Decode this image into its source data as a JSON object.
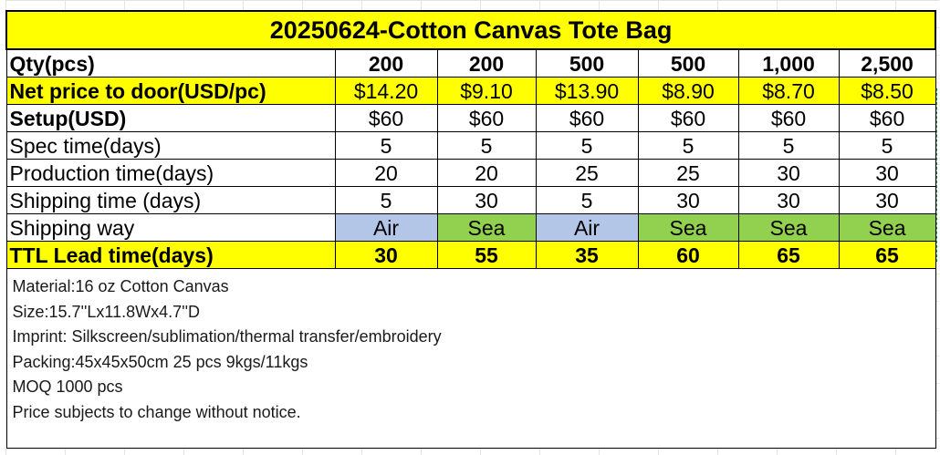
{
  "title": "20250624-Cotton Canvas Tote Bag",
  "header": {
    "label": "Qty(pcs)",
    "quantities": [
      "200",
      "200",
      "500",
      "500",
      "1,000",
      "2,500"
    ]
  },
  "rows": [
    {
      "label": "Net price to door(USD/pc)",
      "values": [
        "$14.20",
        "$9.10",
        "$13.90",
        "$8.90",
        "$8.70",
        "$8.50"
      ]
    },
    {
      "label": "Setup(USD)",
      "values": [
        "$60",
        "$60",
        "$60",
        "$60",
        "$60",
        "$60"
      ]
    },
    {
      "label": "Spec time(days)",
      "values": [
        "5",
        "5",
        "5",
        "5",
        "5",
        "5"
      ]
    },
    {
      "label": "Production time(days)",
      "values": [
        "20",
        "20",
        "25",
        "25",
        "30",
        "30"
      ]
    },
    {
      "label": "Shipping time (days)",
      "values": [
        "5",
        "30",
        "5",
        "30",
        "30",
        "30"
      ]
    },
    {
      "label": "Shipping way",
      "values": [
        "Air",
        "Sea",
        "Air",
        "Sea",
        "Sea",
        "Sea"
      ]
    },
    {
      "label": "TTL Lead time(days)",
      "values": [
        "30",
        "55",
        "35",
        "60",
        "65",
        "65"
      ]
    }
  ],
  "notes": [
    "Material:16 oz Cotton Canvas",
    "Size:15.7''Lx11.8Wx4.7''D",
    "Imprint: Silkscreen/sublimation/thermal transfer/embroidery",
    "Packing:45x45x50cm 25 pcs 9kgs/11kgs",
    "MOQ 1000 pcs",
    "Price subjects to change without notice."
  ],
  "colors": {
    "highlight_yellow": "#ffff00",
    "air_blue": "#b4c6e7",
    "sea_green": "#92d050"
  }
}
